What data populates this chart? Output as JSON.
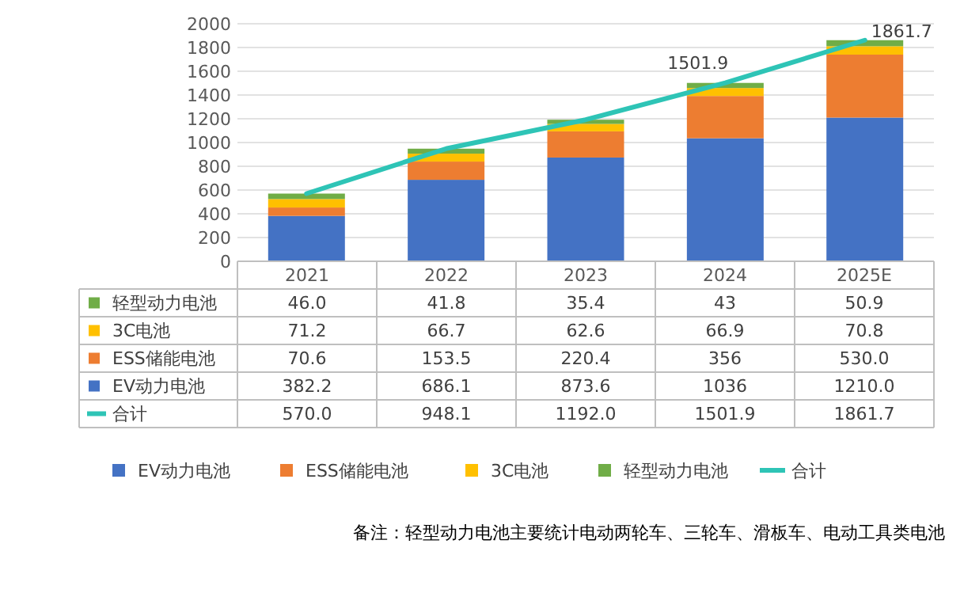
{
  "chart_data": {
    "type": "bar",
    "stacked": true,
    "categories": [
      "2021",
      "2022",
      "2023",
      "2024",
      "2025E"
    ],
    "series": [
      {
        "name": "EV动力电池",
        "color": "#4472c4",
        "values": [
          382.2,
          686.1,
          873.6,
          1036,
          1210.0
        ],
        "value_labels": [
          "382.2",
          "686.1",
          "873.6",
          "1036",
          "1210.0"
        ]
      },
      {
        "name": "ESS储能电池",
        "color": "#ed7d31",
        "values": [
          70.6,
          153.5,
          220.4,
          356,
          530.0
        ],
        "value_labels": [
          "70.6",
          "153.5",
          "220.4",
          "356",
          "530.0"
        ]
      },
      {
        "name": "3C电池",
        "color": "#ffc000",
        "values": [
          71.2,
          66.7,
          62.6,
          66.9,
          70.8
        ],
        "value_labels": [
          "71.2",
          "66.7",
          "62.6",
          "66.9",
          "70.8"
        ]
      },
      {
        "name": "轻型动力电池",
        "color": "#70ad47",
        "values": [
          46.0,
          41.8,
          35.4,
          43,
          50.9
        ],
        "value_labels": [
          "46.0",
          "41.8",
          "35.4",
          "43",
          "50.9"
        ]
      },
      {
        "name": "合计",
        "type": "line",
        "color": "#2ec4b6",
        "values": [
          570.0,
          948.1,
          1192.0,
          1501.9,
          1861.7
        ],
        "value_labels": [
          "570.0",
          "948.1",
          "1192.0",
          "1501.9",
          "1861.7"
        ]
      }
    ],
    "ylim": [
      0,
      2000
    ],
    "yticks": [
      0,
      200,
      400,
      600,
      800,
      1000,
      1200,
      1400,
      1600,
      1800,
      2000
    ],
    "grid": "y",
    "legend": "bottom",
    "data_labels": true,
    "annotations": [
      {
        "text": "1501.9",
        "x": "2024",
        "y": 1501.9
      },
      {
        "text": "1861.7",
        "x": "2025E",
        "y": 1861.7
      },
      "备注：轻型动力电池主要统计电动两轮车、三轮车、滑板车、电动工具类电池"
    ]
  }
}
